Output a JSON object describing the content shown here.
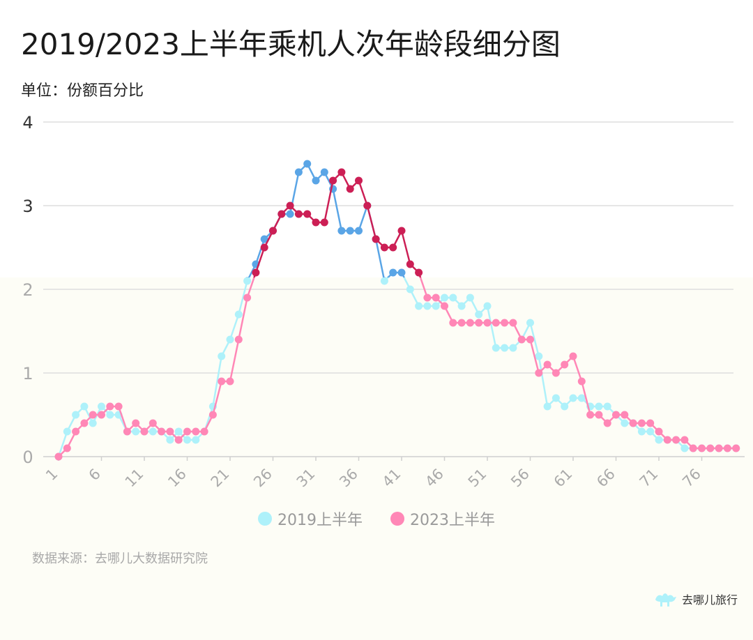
{
  "header": {
    "title": "2019/2023上半年乘机人次年龄段细分图",
    "unit": "单位：份额百分比"
  },
  "footer": {
    "source": "数据来源：去哪儿大数据研究院",
    "brand": "去哪儿旅行"
  },
  "colors": {
    "series_2019_bright": "#5aa5e6",
    "series_2019_light": "#aef1fa",
    "series_2023_bright": "#cc1f55",
    "series_2023_light": "#ff87b6",
    "grid": "#dddddd",
    "background_lower": "#fdfdf6"
  },
  "chart_data": {
    "type": "line",
    "ylim": [
      0,
      4
    ],
    "yticks": [
      0,
      1,
      2,
      3,
      4
    ],
    "xticks": [
      1,
      6,
      11,
      16,
      21,
      26,
      31,
      36,
      41,
      46,
      51,
      56,
      61,
      66,
      71,
      76
    ],
    "x": [
      1,
      2,
      3,
      4,
      5,
      6,
      7,
      8,
      9,
      10,
      11,
      12,
      13,
      14,
      15,
      16,
      17,
      18,
      19,
      20,
      21,
      22,
      23,
      24,
      25,
      26,
      27,
      28,
      29,
      30,
      31,
      32,
      33,
      34,
      35,
      36,
      37,
      38,
      39,
      40,
      41,
      42,
      43,
      44,
      45,
      46,
      47,
      48,
      49,
      50,
      51,
      52,
      53,
      54,
      55,
      56,
      57,
      58,
      59,
      60,
      61,
      62,
      63,
      64,
      65,
      66,
      67,
      68,
      69,
      70,
      71,
      72,
      73,
      74,
      75,
      76,
      77,
      78,
      79,
      80
    ],
    "series": [
      {
        "name": "2019上半年",
        "values": [
          0,
          0.3,
          0.5,
          0.6,
          0.4,
          0.6,
          0.5,
          0.5,
          0.3,
          0.3,
          0.3,
          0.3,
          0.3,
          0.2,
          0.3,
          0.2,
          0.2,
          0.3,
          0.6,
          1.2,
          1.4,
          1.7,
          2.1,
          2.3,
          2.6,
          2.7,
          2.9,
          2.9,
          3.4,
          3.5,
          3.3,
          3.4,
          3.2,
          2.7,
          2.7,
          2.7,
          3.0,
          2.6,
          2.1,
          2.2,
          2.2,
          2.0,
          1.8,
          1.8,
          1.8,
          1.9,
          1.9,
          1.8,
          1.9,
          1.7,
          1.8,
          1.3,
          1.3,
          1.3,
          1.4,
          1.6,
          1.2,
          0.6,
          0.7,
          0.6,
          0.7,
          0.7,
          0.6,
          0.6,
          0.6,
          0.5,
          0.4,
          0.4,
          0.3,
          0.3,
          0.2,
          0.2,
          0.2,
          0.1,
          0.1,
          0.1,
          0.1,
          0.1,
          0.1,
          0.1
        ]
      },
      {
        "name": "2023上半年",
        "values": [
          0,
          0.1,
          0.3,
          0.4,
          0.5,
          0.5,
          0.6,
          0.6,
          0.3,
          0.4,
          0.3,
          0.4,
          0.3,
          0.3,
          0.2,
          0.3,
          0.3,
          0.3,
          0.5,
          0.9,
          0.9,
          1.4,
          1.9,
          2.2,
          2.5,
          2.7,
          2.9,
          3.0,
          2.9,
          2.9,
          2.8,
          2.8,
          3.3,
          3.4,
          3.2,
          3.3,
          3.0,
          2.6,
          2.5,
          2.5,
          2.7,
          2.3,
          2.2,
          1.9,
          1.9,
          1.8,
          1.6,
          1.6,
          1.6,
          1.6,
          1.6,
          1.6,
          1.6,
          1.6,
          1.4,
          1.4,
          1.0,
          1.1,
          1.0,
          1.1,
          1.2,
          0.9,
          0.5,
          0.5,
          0.4,
          0.5,
          0.5,
          0.4,
          0.4,
          0.4,
          0.3,
          0.2,
          0.2,
          0.2,
          0.1,
          0.1,
          0.1,
          0.1,
          0.1,
          0.1
        ]
      }
    ]
  }
}
